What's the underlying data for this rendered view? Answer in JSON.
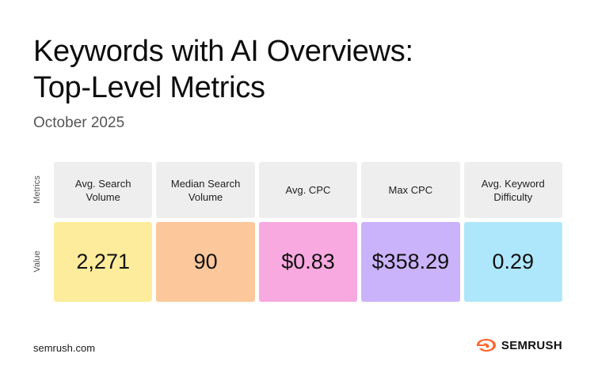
{
  "title": {
    "line1": "Keywords with AI Overviews:",
    "line2": "Top-Level Metrics"
  },
  "subtitle": "October 2025",
  "row_labels": {
    "metrics": "Metrics",
    "value": "Value"
  },
  "metrics": [
    {
      "label": "Avg. Search Volume",
      "value": "2,271",
      "color": "#fdec9b"
    },
    {
      "label": "Median Search Volume",
      "value": "90",
      "color": "#fcc79a"
    },
    {
      "label": "Avg. CPC",
      "value": "$0.83",
      "color": "#f8a9df"
    },
    {
      "label": "Max CPC",
      "value": "$358.29",
      "color": "#cbb3fb"
    },
    {
      "label": "Avg. Keyword Difficulty",
      "value": "0.29",
      "color": "#aee7fb"
    }
  ],
  "footer": {
    "url": "semrush.com",
    "brand": "SEMRUSH",
    "brand_color": "#ff642d"
  }
}
